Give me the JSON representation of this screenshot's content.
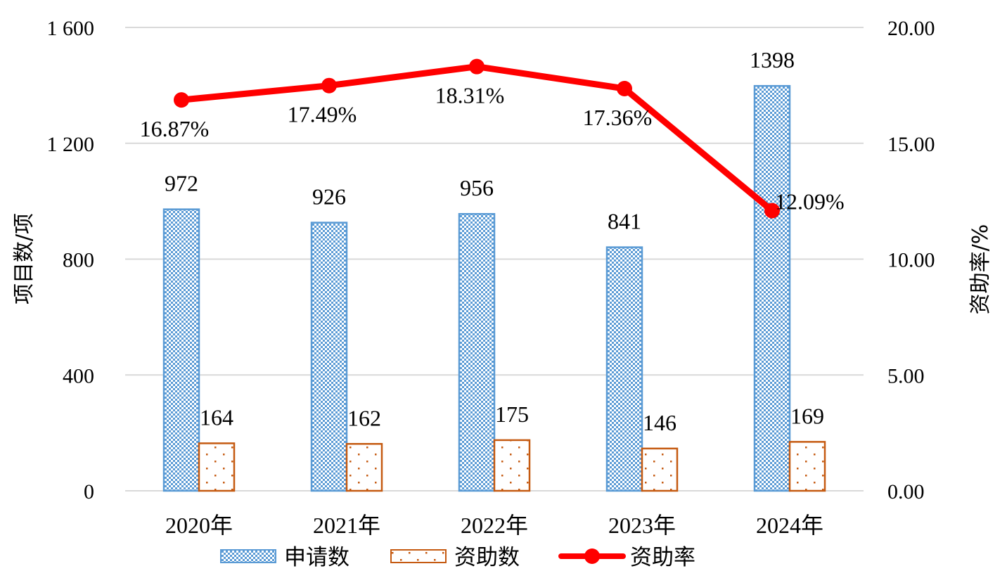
{
  "chart_data": {
    "type": "bar",
    "title": "",
    "categories": [
      "2020年",
      "2021年",
      "2022年",
      "2023年",
      "2024年"
    ],
    "series": [
      {
        "name": "申请数",
        "kind": "bar",
        "axis": "left",
        "values": [
          972,
          926,
          956,
          841,
          1398
        ],
        "labels": [
          "972",
          "926",
          "956",
          "841",
          "1398"
        ],
        "color": "#5b9bd5"
      },
      {
        "name": "资助数",
        "kind": "bar",
        "axis": "left",
        "values": [
          164,
          162,
          175,
          146,
          169
        ],
        "labels": [
          "164",
          "162",
          "175",
          "146",
          "169"
        ],
        "color": "#c55a11"
      },
      {
        "name": "资助率",
        "kind": "line",
        "axis": "right",
        "values": [
          16.87,
          17.49,
          18.31,
          17.36,
          12.09
        ],
        "labels": [
          "16.87%",
          "17.49%",
          "18.31%",
          "17.36%",
          "12.09%"
        ],
        "color": "#ff0000"
      }
    ],
    "y_left": {
      "label": "项目数/项",
      "range": [
        0,
        1600
      ],
      "ticks": [
        0,
        400,
        800,
        1200,
        1600
      ],
      "tick_labels": [
        "0",
        "400",
        "800",
        "1 200",
        "1 600"
      ]
    },
    "y_right": {
      "label": "资助率/%",
      "range": [
        0,
        20
      ],
      "ticks": [
        0,
        5,
        10,
        15,
        20
      ],
      "tick_labels": [
        "0.00",
        "5.00",
        "10.00",
        "15.00",
        "20.00"
      ]
    },
    "grid": true,
    "legend": {
      "position": "bottom",
      "entries": [
        "申请数",
        "资助数",
        "资助率"
      ]
    }
  }
}
